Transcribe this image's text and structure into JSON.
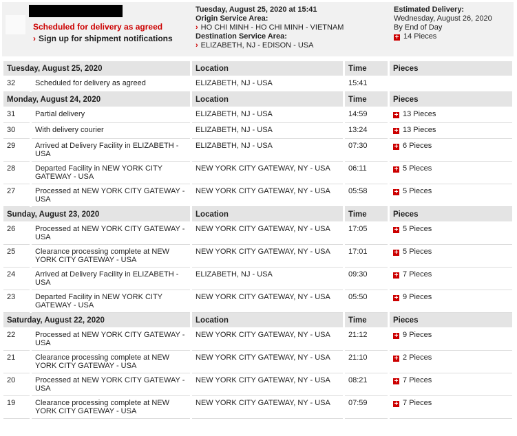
{
  "header": {
    "status": "Scheduled for delivery as agreed",
    "signup": "Sign up for shipment notifications",
    "datetime": "Tuesday, August 25, 2020 at 15:41",
    "origin_label": "Origin Service Area:",
    "origin": "HO CHI MINH - HO CHI MINH - VIETNAM",
    "destination_label": "Destination Service Area:",
    "destination": "ELIZABETH, NJ - EDISON - USA",
    "estimated_label": "Estimated Delivery:",
    "estimated_date": "Wednesday, August 26, 2020",
    "estimated_time": "By End of Day",
    "pieces": "14 Pieces"
  },
  "columns": {
    "location": "Location",
    "time": "Time",
    "pieces": "Pieces"
  },
  "groups": [
    {
      "date": "Tuesday, August 25, 2020",
      "rows": [
        {
          "number": "32",
          "event": "Scheduled for delivery as agreed",
          "location": "ELIZABETH, NJ - USA",
          "time": "15:41"
        }
      ]
    },
    {
      "date": "Monday, August 24, 2020",
      "rows": [
        {
          "number": "31",
          "event": "Partial delivery",
          "location": "ELIZABETH, NJ - USA",
          "time": "14:59",
          "pieces": "13 Pieces"
        },
        {
          "number": "30",
          "event": "With delivery courier",
          "location": "ELIZABETH, NJ - USA",
          "time": "13:24",
          "pieces": "13 Pieces"
        },
        {
          "number": "29",
          "event": "Arrived at Delivery Facility in ELIZABETH - USA",
          "location": "ELIZABETH, NJ - USA",
          "time": "07:30",
          "pieces": "6 Pieces"
        },
        {
          "number": "28",
          "event": "Departed Facility in NEW YORK CITY GATEWAY - USA",
          "location": "NEW YORK CITY GATEWAY, NY - USA",
          "time": "06:11",
          "pieces": "5 Pieces"
        },
        {
          "number": "27",
          "event": "Processed at NEW YORK CITY GATEWAY - USA",
          "location": "NEW YORK CITY GATEWAY, NY - USA",
          "time": "05:58",
          "pieces": "5 Pieces"
        }
      ]
    },
    {
      "date": "Sunday, August 23, 2020",
      "rows": [
        {
          "number": "26",
          "event": "Processed at NEW YORK CITY GATEWAY - USA",
          "location": "NEW YORK CITY GATEWAY, NY - USA",
          "time": "17:05",
          "pieces": "5 Pieces"
        },
        {
          "number": "25",
          "event": "Clearance processing complete at NEW YORK CITY GATEWAY - USA",
          "location": "NEW YORK CITY GATEWAY, NY - USA",
          "time": "17:01",
          "pieces": "5 Pieces"
        },
        {
          "number": "24",
          "event": "Arrived at Delivery Facility in ELIZABETH - USA",
          "location": "ELIZABETH, NJ - USA",
          "time": "09:30",
          "pieces": "7 Pieces"
        },
        {
          "number": "23",
          "event": "Departed Facility in NEW YORK CITY GATEWAY - USA",
          "location": "NEW YORK CITY GATEWAY, NY - USA",
          "time": "05:50",
          "pieces": "9 Pieces"
        }
      ]
    },
    {
      "date": "Saturday, August 22, 2020",
      "rows": [
        {
          "number": "22",
          "event": "Processed at NEW YORK CITY GATEWAY - USA",
          "location": "NEW YORK CITY GATEWAY, NY - USA",
          "time": "21:12",
          "pieces": "9 Pieces"
        },
        {
          "number": "21",
          "event": "Clearance processing complete at NEW YORK CITY GATEWAY - USA",
          "location": "NEW YORK CITY GATEWAY, NY - USA",
          "time": "21:10",
          "pieces": "2 Pieces"
        },
        {
          "number": "20",
          "event": "Processed at NEW YORK CITY GATEWAY - USA",
          "location": "NEW YORK CITY GATEWAY, NY - USA",
          "time": "08:21",
          "pieces": "7 Pieces"
        },
        {
          "number": "19",
          "event": "Clearance processing complete at NEW YORK CITY GATEWAY - USA",
          "location": "NEW YORK CITY GATEWAY, NY - USA",
          "time": "07:59",
          "pieces": "7 Pieces"
        }
      ]
    }
  ]
}
